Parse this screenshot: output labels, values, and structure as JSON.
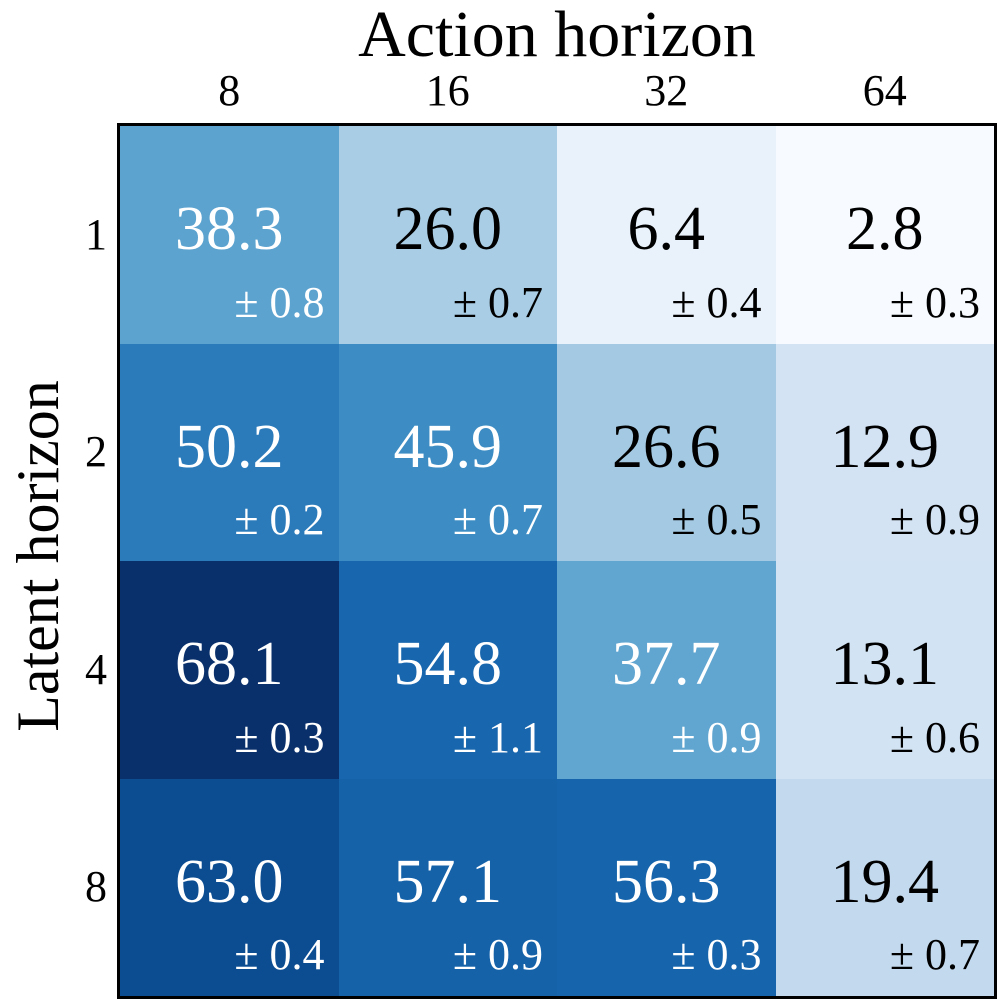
{
  "chart_data": {
    "type": "heatmap",
    "xlabel": "Action horizon",
    "ylabel": "Latent horizon",
    "x_categories": [
      "8",
      "16",
      "32",
      "64"
    ],
    "y_categories": [
      "1",
      "2",
      "4",
      "8"
    ],
    "colormap": "Blues",
    "values": [
      [
        38.3,
        26.0,
        6.4,
        2.8
      ],
      [
        50.2,
        45.9,
        26.6,
        12.9
      ],
      [
        68.1,
        54.8,
        37.7,
        13.1
      ],
      [
        63.0,
        57.1,
        56.3,
        19.4
      ]
    ],
    "errors": [
      [
        0.8,
        0.7,
        0.4,
        0.3
      ],
      [
        0.2,
        0.7,
        0.5,
        0.9
      ],
      [
        0.3,
        1.1,
        0.9,
        0.6
      ],
      [
        0.4,
        0.9,
        0.3,
        0.7
      ]
    ],
    "value_text": [
      [
        "38.3",
        "26.0",
        "6.4",
        "2.8"
      ],
      [
        "50.2",
        "45.9",
        "26.6",
        "12.9"
      ],
      [
        "68.1",
        "54.8",
        "37.7",
        "13.1"
      ],
      [
        "63.0",
        "57.1",
        "56.3",
        "19.4"
      ]
    ],
    "error_text": [
      [
        "± 0.8",
        "± 0.7",
        "± 0.4",
        "± 0.3"
      ],
      [
        "± 0.2",
        "± 0.7",
        "± 0.5",
        "± 0.9"
      ],
      [
        "± 0.3",
        "± 1.1",
        "± 0.9",
        "± 0.6"
      ],
      [
        "± 0.4",
        "± 0.9",
        "± 0.3",
        "± 0.7"
      ]
    ],
    "cell_colors": [
      [
        "#5ca3d0",
        "#a8cde4",
        "#e9f1fa",
        "#f7fbff"
      ],
      [
        "#2b7bbb",
        "#3d8dc4",
        "#a4cae3",
        "#d3e3f3"
      ],
      [
        "#0a306b",
        "#1866ad",
        "#61a6d1",
        "#d2e3f3"
      ],
      [
        "#0c4d92",
        "#1562a9",
        "#1664ab",
        "#c3d9ed"
      ]
    ],
    "text_colors": [
      [
        "#ffffff",
        "#000000",
        "#000000",
        "#000000"
      ],
      [
        "#ffffff",
        "#ffffff",
        "#000000",
        "#000000"
      ],
      [
        "#ffffff",
        "#ffffff",
        "#ffffff",
        "#000000"
      ],
      [
        "#ffffff",
        "#ffffff",
        "#ffffff",
        "#000000"
      ]
    ],
    "grid": false,
    "legend": "none"
  }
}
